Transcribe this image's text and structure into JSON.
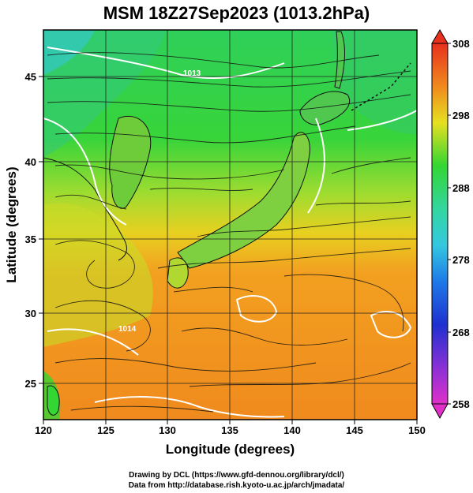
{
  "title": "MSM 18Z27Sep2023 (1013.2hPa)",
  "xlabel": "Longitude (degrees)",
  "ylabel": "Latitude  (degrees)",
  "credits": {
    "line1": "Drawing by DCL (https://www.gfd-dennou.org/library/dcl/)",
    "line2": "Data from http://database.rish.kyoto-u.ac.jp/arch/jmadata/"
  },
  "x_ticks": [
    "120",
    "125",
    "130",
    "135",
    "140",
    "145",
    "150"
  ],
  "y_ticks": [
    "25",
    "30",
    "35",
    "40",
    "45"
  ],
  "colorbar": {
    "labels": [
      "308",
      "298",
      "288",
      "278",
      "268",
      "258"
    ],
    "range": [
      258,
      308
    ]
  },
  "map_labels": {
    "contour_a": "1013",
    "contour_b": "1014"
  },
  "colors": {
    "green": "#33d633",
    "yellow_green": "#a8e02a",
    "orange": "#f08a1e",
    "cyan": "#33c8c8"
  }
}
